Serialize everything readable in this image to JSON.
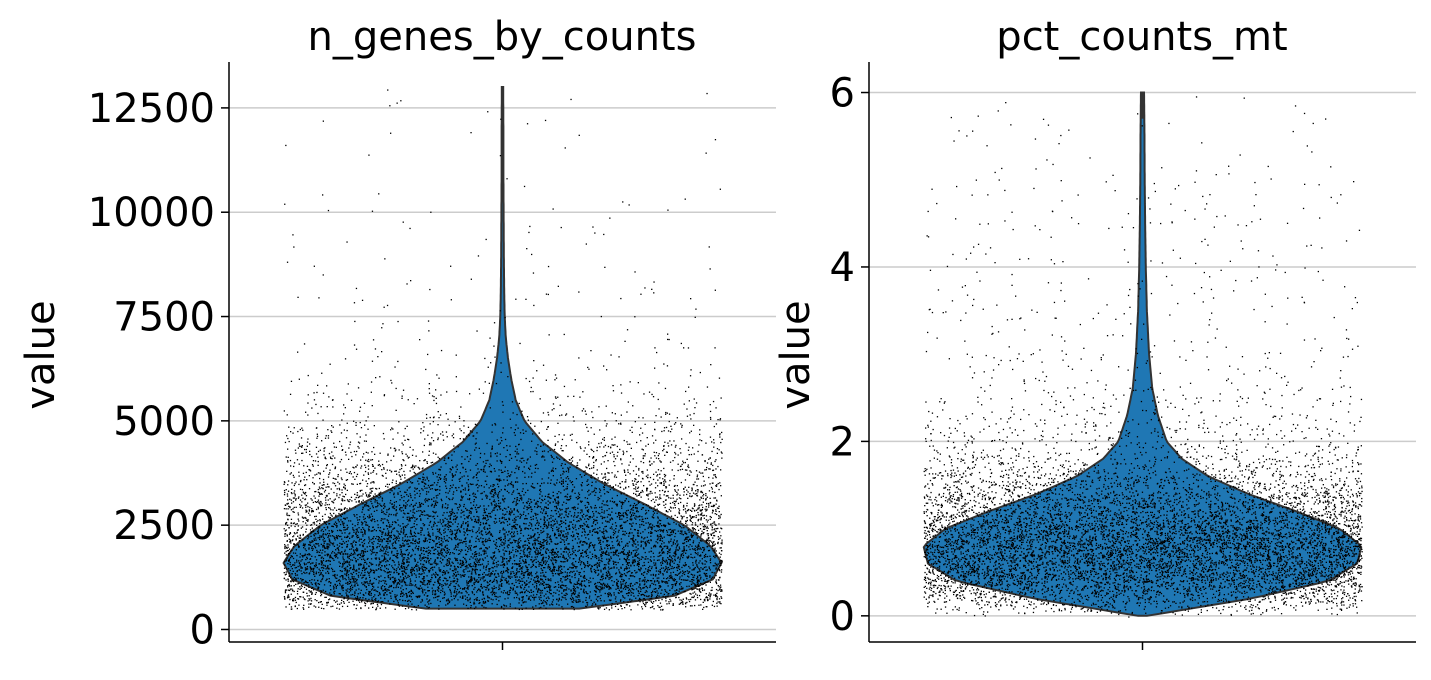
{
  "chart_data": [
    {
      "type": "violin",
      "title": "n_genes_by_counts",
      "ylabel": "value",
      "ylim": [
        -300,
        13600
      ],
      "yticks": [
        0,
        2500,
        5000,
        7500,
        10000,
        12500
      ],
      "ytick_labels": [
        "0",
        "2500",
        "5000",
        "7500",
        "10000",
        "12500"
      ],
      "grid": true,
      "fill_color": "#1f77b4",
      "point_color": "#000000",
      "data_min": 500,
      "data_max": 13000,
      "density_profile": [
        [
          500,
          0.35
        ],
        [
          800,
          0.78
        ],
        [
          1200,
          0.96
        ],
        [
          1600,
          1.0
        ],
        [
          2000,
          0.95
        ],
        [
          2500,
          0.83
        ],
        [
          3000,
          0.65
        ],
        [
          3500,
          0.46
        ],
        [
          4000,
          0.3
        ],
        [
          4500,
          0.18
        ],
        [
          5000,
          0.1
        ],
        [
          5500,
          0.06
        ],
        [
          6000,
          0.04
        ],
        [
          6500,
          0.025
        ],
        [
          7000,
          0.015
        ],
        [
          7500,
          0.01
        ],
        [
          8000,
          0.008
        ],
        [
          9000,
          0.006
        ],
        [
          10000,
          0.005
        ],
        [
          11000,
          0.004
        ],
        [
          12000,
          0.004
        ],
        [
          13000,
          0.003
        ]
      ]
    },
    {
      "type": "violin",
      "title": "pct_counts_mt",
      "ylabel": "value",
      "ylim": [
        -0.3,
        6.35
      ],
      "yticks": [
        0,
        2,
        4,
        6
      ],
      "ytick_labels": [
        "0",
        "2",
        "4",
        "6"
      ],
      "grid": true,
      "fill_color": "#1f77b4",
      "point_color": "#000000",
      "data_min": 0,
      "data_max": 6,
      "density_profile": [
        [
          0,
          0.02
        ],
        [
          0.2,
          0.5
        ],
        [
          0.4,
          0.85
        ],
        [
          0.6,
          0.98
        ],
        [
          0.8,
          1.0
        ],
        [
          1.0,
          0.9
        ],
        [
          1.2,
          0.7
        ],
        [
          1.4,
          0.48
        ],
        [
          1.6,
          0.3
        ],
        [
          1.8,
          0.18
        ],
        [
          2.0,
          0.11
        ],
        [
          2.3,
          0.07
        ],
        [
          2.6,
          0.045
        ],
        [
          3.0,
          0.03
        ],
        [
          3.5,
          0.02
        ],
        [
          4.0,
          0.015
        ],
        [
          4.5,
          0.012
        ],
        [
          5.0,
          0.01
        ],
        [
          5.5,
          0.009
        ],
        [
          6.0,
          0.007
        ]
      ]
    }
  ]
}
